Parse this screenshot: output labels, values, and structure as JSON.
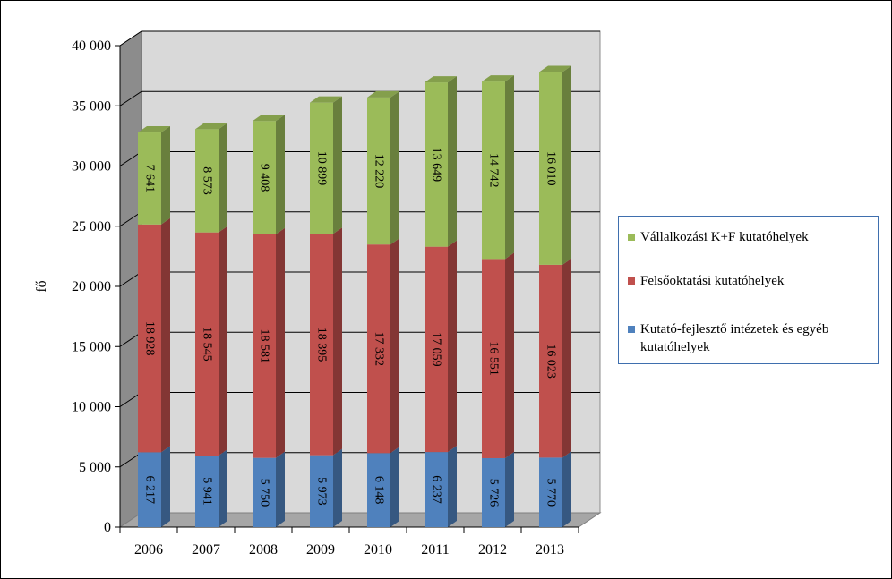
{
  "chart_data": {
    "type": "bar",
    "stacked": true,
    "three_d": true,
    "categories": [
      "2006",
      "2007",
      "2008",
      "2009",
      "2010",
      "2011",
      "2012",
      "2013"
    ],
    "series": [
      {
        "name": "Kutató-fejlesztő intézetek és egyéb kutatóhelyek",
        "color": "#4f81bd",
        "values": [
          6217,
          5941,
          5750,
          5973,
          6148,
          6237,
          5726,
          5770
        ],
        "labels": [
          "6 217",
          "5 941",
          "5 750",
          "5 973",
          "6 148",
          "6 237",
          "5 726",
          "5 770"
        ]
      },
      {
        "name": "Felsőoktatási kutatóhelyek",
        "color": "#c0504d",
        "values": [
          18928,
          18545,
          18581,
          18395,
          17332,
          17059,
          16551,
          16023
        ],
        "labels": [
          "18 928",
          "18 545",
          "18 581",
          "18 395",
          "17 332",
          "17 059",
          "16 551",
          "16 023"
        ]
      },
      {
        "name": "Vállalkozási K+F kutatóhelyek",
        "color": "#9bbb59",
        "values": [
          7641,
          8573,
          9408,
          10899,
          12220,
          13649,
          14742,
          16010
        ],
        "labels": [
          "7 641",
          "8 573",
          "9 408",
          "10 899",
          "12 220",
          "13 649",
          "14 742",
          "16 010"
        ]
      }
    ],
    "title": "",
    "xlabel": "",
    "ylabel": "fő",
    "ylim": [
      0,
      40000
    ],
    "yticks": [
      0,
      5000,
      10000,
      15000,
      20000,
      25000,
      30000,
      35000,
      40000
    ],
    "ytick_labels": [
      "0",
      "5 000",
      "10 000",
      "15 000",
      "20 000",
      "25 000",
      "30 000",
      "35 000",
      "40 000"
    ],
    "grid": true,
    "legend_position": "right",
    "legend_order": [
      2,
      1,
      0
    ]
  }
}
